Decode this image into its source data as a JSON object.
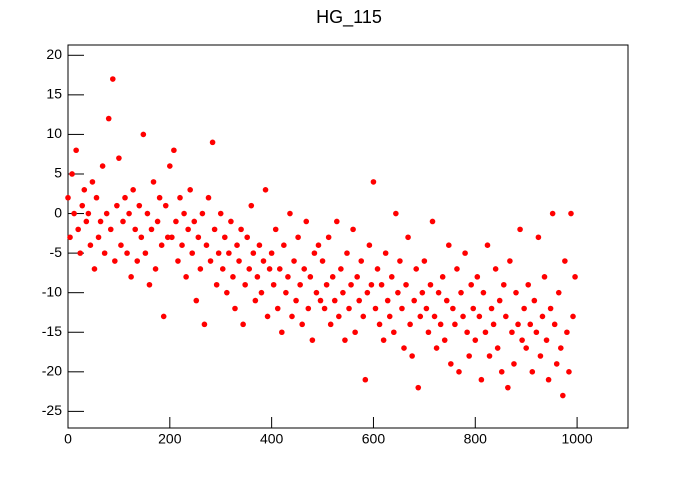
{
  "chart_data": {
    "type": "scatter",
    "title": "HG_115",
    "color": "#ff0000",
    "xlim": [
      0,
      1100
    ],
    "ylim": [
      -27.1,
      21.3
    ],
    "xticks": [
      0,
      200,
      400,
      600,
      800,
      1000
    ],
    "yticks": [
      -25,
      -20,
      -15,
      -10,
      -5,
      0,
      5,
      10,
      15,
      20
    ],
    "x": [
      0,
      4,
      8,
      12,
      16,
      20,
      24,
      28,
      32,
      36,
      40,
      44,
      48,
      52,
      56,
      60,
      64,
      68,
      72,
      76,
      80,
      84,
      88,
      92,
      96,
      100,
      104,
      108,
      112,
      116,
      120,
      124,
      128,
      132,
      136,
      140,
      144,
      148,
      152,
      156,
      160,
      164,
      168,
      172,
      176,
      180,
      184,
      188,
      192,
      196,
      200,
      204,
      208,
      212,
      216,
      220,
      224,
      228,
      232,
      236,
      240,
      244,
      248,
      252,
      256,
      260,
      264,
      268,
      272,
      276,
      280,
      284,
      288,
      292,
      296,
      300,
      304,
      308,
      312,
      316,
      320,
      324,
      328,
      332,
      336,
      340,
      344,
      348,
      352,
      356,
      360,
      364,
      368,
      372,
      376,
      380,
      384,
      388,
      392,
      396,
      400,
      404,
      408,
      412,
      416,
      420,
      424,
      428,
      432,
      436,
      440,
      444,
      448,
      452,
      456,
      460,
      464,
      468,
      472,
      476,
      480,
      484,
      488,
      492,
      496,
      500,
      504,
      508,
      512,
      516,
      520,
      524,
      528,
      532,
      536,
      540,
      544,
      548,
      552,
      556,
      560,
      564,
      568,
      572,
      576,
      580,
      584,
      588,
      592,
      596,
      600,
      604,
      608,
      612,
      616,
      620,
      624,
      628,
      632,
      636,
      640,
      644,
      648,
      652,
      656,
      660,
      664,
      668,
      672,
      676,
      680,
      684,
      688,
      692,
      696,
      700,
      704,
      708,
      712,
      716,
      720,
      724,
      728,
      732,
      736,
      740,
      744,
      748,
      752,
      756,
      760,
      764,
      768,
      772,
      776,
      780,
      784,
      788,
      792,
      796,
      800,
      804,
      808,
      812,
      816,
      820,
      824,
      828,
      832,
      836,
      840,
      844,
      848,
      852,
      856,
      860,
      864,
      868,
      872,
      876,
      880,
      884,
      888,
      892,
      896,
      900,
      904,
      908,
      912,
      916,
      920,
      924,
      928,
      932,
      936,
      940,
      944,
      948,
      952,
      956,
      960,
      964,
      968,
      972,
      976,
      980,
      984,
      988,
      992,
      996
    ],
    "values": [
      2,
      -3,
      5,
      0,
      8,
      -2,
      -5,
      1,
      3,
      -1,
      0,
      -4,
      4,
      -7,
      2,
      -3,
      -1,
      6,
      -5,
      0,
      12,
      -2,
      17,
      -6,
      1,
      7,
      -4,
      -1,
      2,
      -5,
      0,
      -8,
      3,
      -2,
      -6,
      1,
      -3,
      10,
      -5,
      0,
      -9,
      -2,
      4,
      -7,
      -1,
      2,
      -4,
      -13,
      1,
      -3,
      6,
      -3,
      8,
      -1,
      -6,
      2,
      -4,
      0,
      -8,
      -2,
      3,
      -5,
      -1,
      -11,
      -3,
      -7,
      0,
      -14,
      -4,
      2,
      -6,
      9,
      -2,
      -9,
      -5,
      0,
      -7,
      -3,
      -10,
      -5,
      -1,
      -8,
      -12,
      -4,
      -6,
      -2,
      -14,
      -9,
      -3,
      -7,
      1,
      -5,
      -11,
      -8,
      -4,
      -10,
      -6,
      3,
      -13,
      -7,
      -5,
      -9,
      -2,
      -12,
      -7,
      -15,
      -4,
      -10,
      -8,
      0,
      -13,
      -6,
      -11,
      -3,
      -9,
      -14,
      -7,
      -1,
      -12,
      -8,
      -16,
      -5,
      -10,
      -4,
      -11,
      -6,
      -12,
      -9,
      -3,
      -14,
      -8,
      -11,
      -1,
      -13,
      -7,
      -10,
      -16,
      -5,
      -12,
      -9,
      -2,
      -15,
      -8,
      -11,
      -6,
      -13,
      -21,
      -10,
      -4,
      -9,
      4,
      -12,
      -7,
      -14,
      -9,
      -16,
      -5,
      -11,
      -13,
      -8,
      -15,
      0,
      -10,
      -6,
      -12,
      -17,
      -9,
      -3,
      -14,
      -18,
      -11,
      -7,
      -22,
      -13,
      -10,
      -6,
      -12,
      -15,
      -9,
      -1,
      -13,
      -17,
      -10,
      -14,
      -8,
      -16,
      -11,
      -4,
      -19,
      -12,
      -14,
      -7,
      -20,
      -10,
      -13,
      -5,
      -15,
      -18,
      -9,
      -12,
      -16,
      -8,
      -13,
      -21,
      -10,
      -15,
      -4,
      -18,
      -12,
      -14,
      -7,
      -17,
      -11,
      -20,
      -9,
      -13,
      -22,
      -6,
      -15,
      -19,
      -10,
      -14,
      -2,
      -16,
      -12,
      -17,
      -9,
      -14,
      -20,
      -11,
      -15,
      -3,
      -18,
      -13,
      -8,
      -16,
      -21,
      -12,
      0,
      -14,
      -19,
      -10,
      -17,
      -23,
      -6,
      -15,
      -20,
      0,
      -13,
      -8
    ]
  }
}
